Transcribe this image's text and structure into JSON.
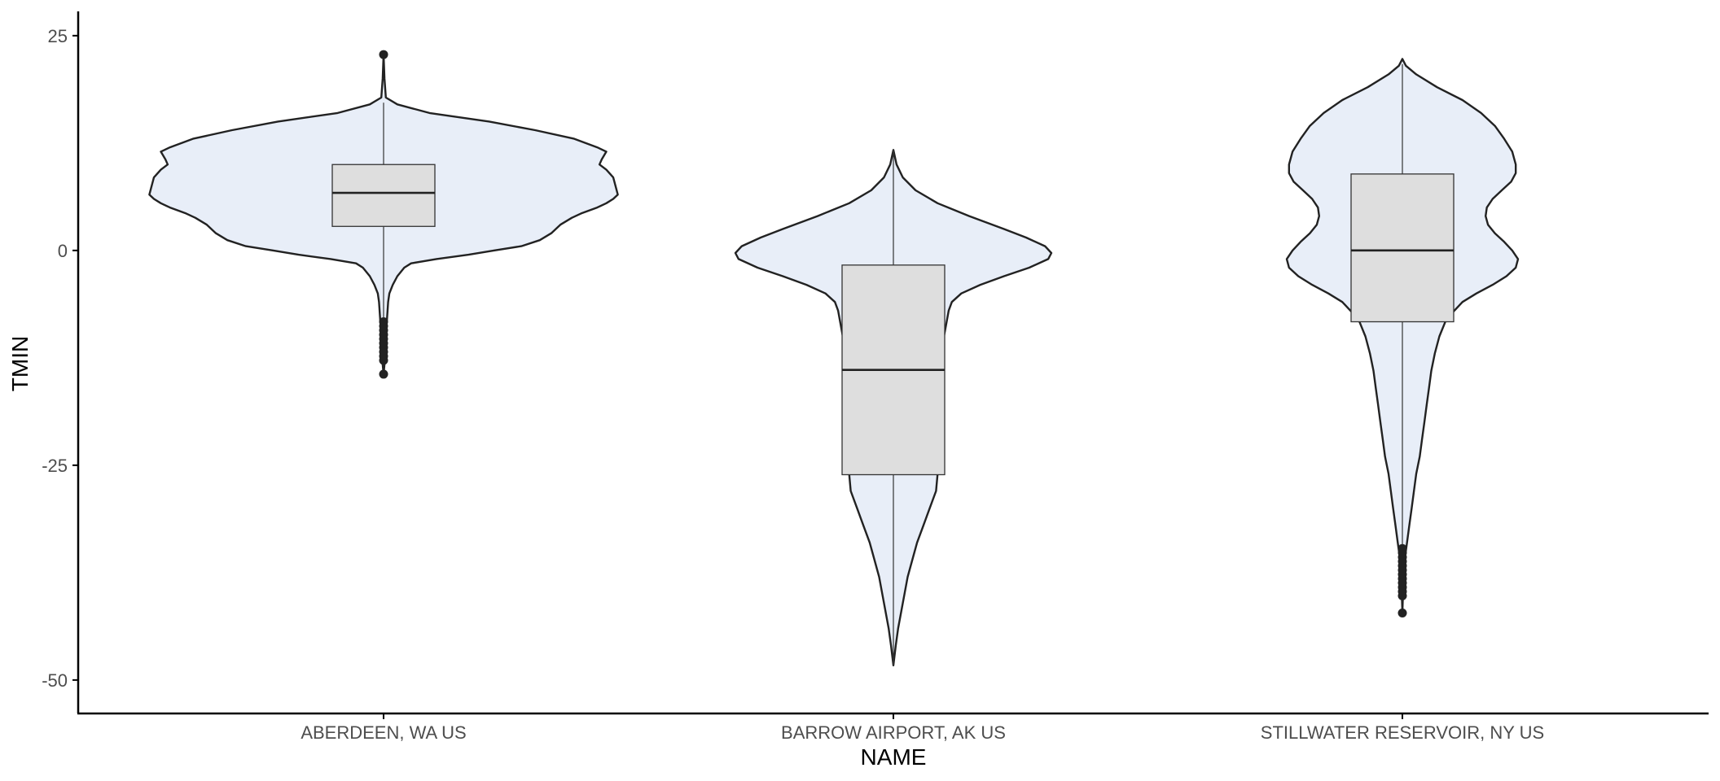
{
  "chart_data": {
    "type": "violin",
    "title": "",
    "xlabel": "NAME",
    "ylabel": "TMIN",
    "ylim": [
      -52,
      26.5
    ],
    "yticks": [
      25,
      0,
      -25,
      -50
    ],
    "ytick_labels": [
      "25",
      "0",
      "-25",
      "-50"
    ],
    "grid": false,
    "legend": "none",
    "colors": {
      "violin_fill": "#e8eef8",
      "violin_stroke": "#222222",
      "box_fill": "#dedede",
      "box_stroke": "#333333",
      "axis": "#000000",
      "tick_label": "#4d4d4d"
    },
    "categories": [
      "ABERDEEN, WA US",
      "BARROW AIRPORT, AK US",
      "STILLWATER RESERVOIR, NY US"
    ],
    "groups": [
      {
        "name": "ABERDEEN, WA US",
        "box": {
          "q1": 2.8,
          "median": 6.7,
          "q3": 10.0,
          "whisker_low": -7.8,
          "whisker_high": 17.2
        },
        "outliers": [
          22.8,
          -8.3,
          -8.8,
          -9.3,
          -9.8,
          -10.3,
          -10.8,
          -11.3,
          -11.8,
          -12.3,
          -12.8,
          -14.4
        ],
        "violin": [
          [
            22.8,
            0.0
          ],
          [
            20.0,
            0.004
          ],
          [
            17.8,
            0.01
          ],
          [
            17.0,
            0.06
          ],
          [
            16.0,
            0.2
          ],
          [
            15.0,
            0.46
          ],
          [
            14.0,
            0.66
          ],
          [
            13.0,
            0.83
          ],
          [
            12.0,
            0.93
          ],
          [
            11.5,
            0.97
          ],
          [
            10.6,
            0.95
          ],
          [
            10.0,
            0.94
          ],
          [
            9.4,
            0.97
          ],
          [
            8.5,
            1.0
          ],
          [
            7.5,
            1.01
          ],
          [
            6.5,
            1.02
          ],
          [
            6.0,
            1.0
          ],
          [
            5.5,
            0.97
          ],
          [
            5.0,
            0.93
          ],
          [
            4.3,
            0.86
          ],
          [
            3.8,
            0.82
          ],
          [
            3.0,
            0.77
          ],
          [
            2.0,
            0.73
          ],
          [
            1.2,
            0.68
          ],
          [
            0.5,
            0.6
          ],
          [
            0.0,
            0.48
          ],
          [
            -0.5,
            0.37
          ],
          [
            -1.0,
            0.23
          ],
          [
            -1.5,
            0.12
          ],
          [
            -2.0,
            0.09
          ],
          [
            -3.0,
            0.06
          ],
          [
            -4.0,
            0.04
          ],
          [
            -5.0,
            0.025
          ],
          [
            -6.0,
            0.02
          ],
          [
            -8.0,
            0.015
          ],
          [
            -10.0,
            0.01
          ],
          [
            -12.0,
            0.008
          ],
          [
            -13.0,
            0.005
          ],
          [
            -14.4,
            0.0
          ]
        ]
      },
      {
        "name": "BARROW AIRPORT, AK US",
        "box": {
          "q1": -26.1,
          "median": -13.9,
          "q3": -1.7,
          "whisker_low": -48.3,
          "whisker_high": 11.7
        },
        "outliers": [],
        "violin": [
          [
            11.7,
            0.0
          ],
          [
            10.0,
            0.02
          ],
          [
            8.5,
            0.06
          ],
          [
            7.0,
            0.14
          ],
          [
            5.5,
            0.28
          ],
          [
            4.0,
            0.48
          ],
          [
            2.5,
            0.7
          ],
          [
            1.5,
            0.84
          ],
          [
            0.5,
            0.96
          ],
          [
            -0.3,
            1.0
          ],
          [
            -1.0,
            0.98
          ],
          [
            -2.0,
            0.86
          ],
          [
            -3.0,
            0.7
          ],
          [
            -4.0,
            0.55
          ],
          [
            -5.0,
            0.43
          ],
          [
            -6.0,
            0.37
          ],
          [
            -7.0,
            0.35
          ],
          [
            -8.0,
            0.34
          ],
          [
            -10.0,
            0.32
          ],
          [
            -12.0,
            0.3
          ],
          [
            -14.0,
            0.29
          ],
          [
            -16.0,
            0.27
          ],
          [
            -18.0,
            0.25
          ],
          [
            -20.0,
            0.24
          ],
          [
            -22.0,
            0.25
          ],
          [
            -24.0,
            0.27
          ],
          [
            -26.0,
            0.28
          ],
          [
            -28.0,
            0.27
          ],
          [
            -30.0,
            0.23
          ],
          [
            -32.0,
            0.19
          ],
          [
            -34.0,
            0.15
          ],
          [
            -36.0,
            0.12
          ],
          [
            -38.0,
            0.09
          ],
          [
            -40.0,
            0.07
          ],
          [
            -42.0,
            0.05
          ],
          [
            -44.0,
            0.03
          ],
          [
            -46.0,
            0.015
          ],
          [
            -47.5,
            0.005
          ],
          [
            -48.3,
            0.0
          ]
        ]
      },
      {
        "name": "STILLWATER RESERVOIR, NY US",
        "box": {
          "q1": -8.3,
          "median": 0.0,
          "q3": 8.9,
          "whisker_low": -34.4,
          "whisker_high": 21.7
        },
        "outliers": [
          -34.7,
          -35.2,
          -35.7,
          -36.2,
          -36.7,
          -37.2,
          -37.7,
          -38.2,
          -38.7,
          -39.2,
          -39.7,
          -40.2,
          -42.2
        ],
        "violin": [
          [
            22.3,
            0.0
          ],
          [
            21.5,
            0.03
          ],
          [
            20.5,
            0.12
          ],
          [
            19.0,
            0.3
          ],
          [
            17.5,
            0.52
          ],
          [
            16.0,
            0.68
          ],
          [
            14.5,
            0.8
          ],
          [
            13.0,
            0.88
          ],
          [
            11.5,
            0.95
          ],
          [
            10.0,
            0.98
          ],
          [
            9.0,
            0.98
          ],
          [
            8.0,
            0.94
          ],
          [
            7.0,
            0.86
          ],
          [
            6.0,
            0.78
          ],
          [
            5.0,
            0.73
          ],
          [
            4.0,
            0.72
          ],
          [
            3.0,
            0.74
          ],
          [
            2.0,
            0.8
          ],
          [
            1.0,
            0.88
          ],
          [
            0.0,
            0.95
          ],
          [
            -1.0,
            1.0
          ],
          [
            -2.0,
            0.98
          ],
          [
            -3.0,
            0.9
          ],
          [
            -4.0,
            0.78
          ],
          [
            -5.0,
            0.64
          ],
          [
            -6.0,
            0.52
          ],
          [
            -8.0,
            0.38
          ],
          [
            -10.0,
            0.32
          ],
          [
            -12.0,
            0.28
          ],
          [
            -14.0,
            0.25
          ],
          [
            -16.0,
            0.23
          ],
          [
            -18.0,
            0.21
          ],
          [
            -20.0,
            0.19
          ],
          [
            -22.0,
            0.17
          ],
          [
            -24.0,
            0.15
          ],
          [
            -26.0,
            0.12
          ],
          [
            -28.0,
            0.1
          ],
          [
            -30.0,
            0.08
          ],
          [
            -32.0,
            0.06
          ],
          [
            -34.0,
            0.04
          ],
          [
            -36.0,
            0.02
          ],
          [
            -38.0,
            0.01
          ],
          [
            -40.0,
            0.005
          ],
          [
            -42.2,
            0.0
          ]
        ]
      }
    ]
  }
}
